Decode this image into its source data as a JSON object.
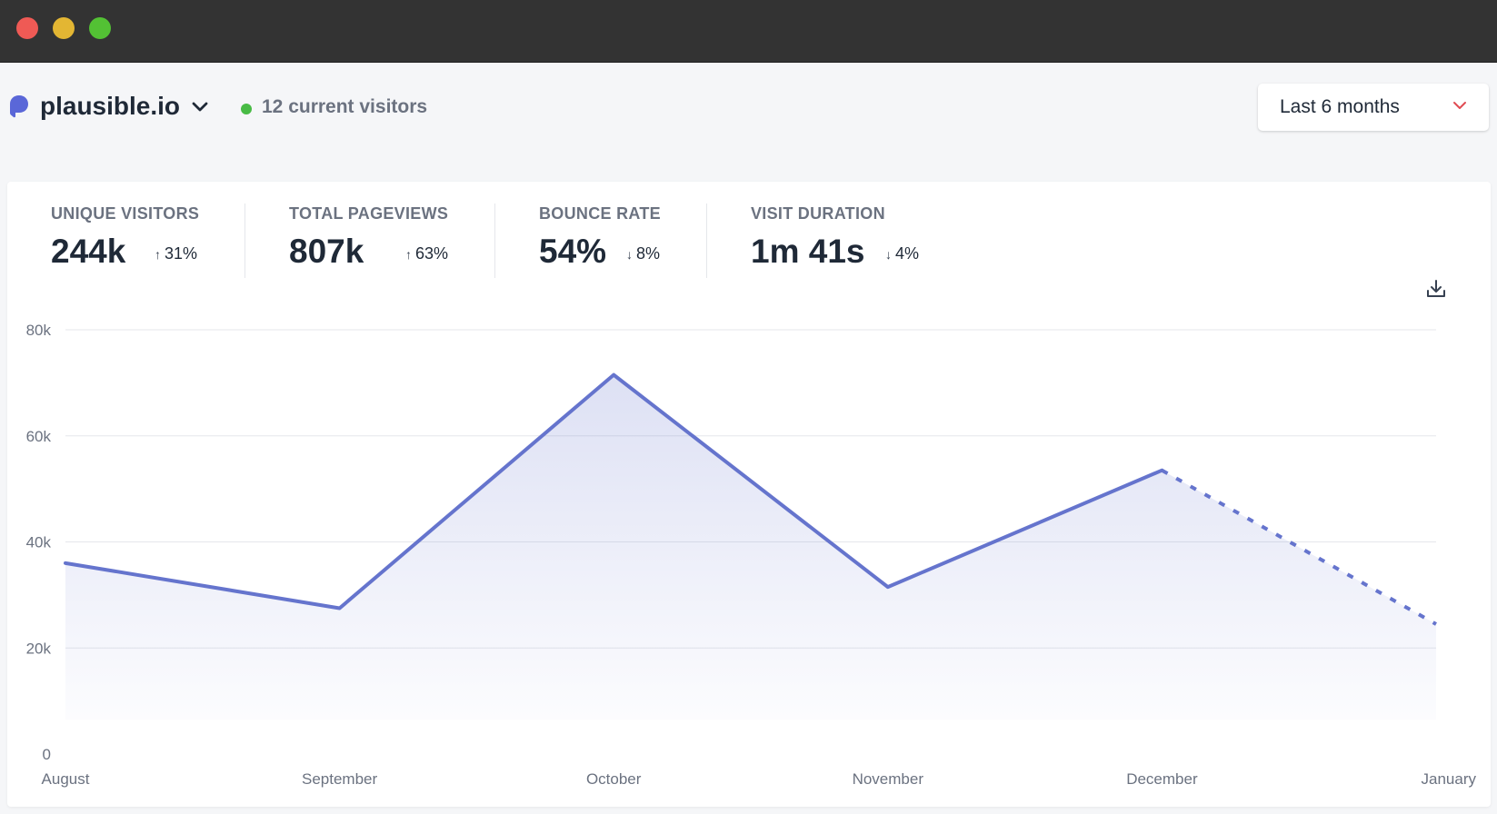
{
  "window": {
    "controls": [
      "close",
      "minimize",
      "maximize"
    ]
  },
  "header": {
    "logo_icon": "plausible-logo-icon",
    "site_name": "plausible.io",
    "site_dropdown_icon": "chevron-down-icon",
    "current_visitors": "12 current visitors",
    "period_select": "Last 6 months",
    "period_dropdown_icon": "chevron-down-icon"
  },
  "stats": [
    {
      "label": "UNIQUE VISITORS",
      "value": "244k",
      "change": "31%",
      "direction": "up"
    },
    {
      "label": "TOTAL PAGEVIEWS",
      "value": "807k",
      "change": "63%",
      "direction": "up"
    },
    {
      "label": "BOUNCE RATE",
      "value": "54%",
      "change": "8%",
      "direction": "down"
    },
    {
      "label": "VISIT DURATION",
      "value": "1m 41s",
      "change": "4%",
      "direction": "down"
    }
  ],
  "toolbar": {
    "download_icon": "download-icon"
  },
  "colors": {
    "line": "#6574cd",
    "fill": "#e0e4f6",
    "live_dot": "#48bb45",
    "grid": "#e5e7eb",
    "period_chevron": "#e04b52"
  },
  "chart_data": {
    "type": "line",
    "categories": [
      "August",
      "September",
      "October",
      "November",
      "December",
      "January"
    ],
    "series": [
      {
        "values": [
          36000,
          27500,
          71500,
          31500,
          53500,
          24500
        ]
      }
    ],
    "incomplete_last_point": true,
    "ylim": [
      0,
      80000
    ],
    "yticks": [
      0,
      20000,
      40000,
      60000,
      80000
    ],
    "ytick_labels": [
      "0",
      "20k",
      "40k",
      "60k",
      "80k"
    ],
    "grid": true,
    "area_fill": true
  }
}
